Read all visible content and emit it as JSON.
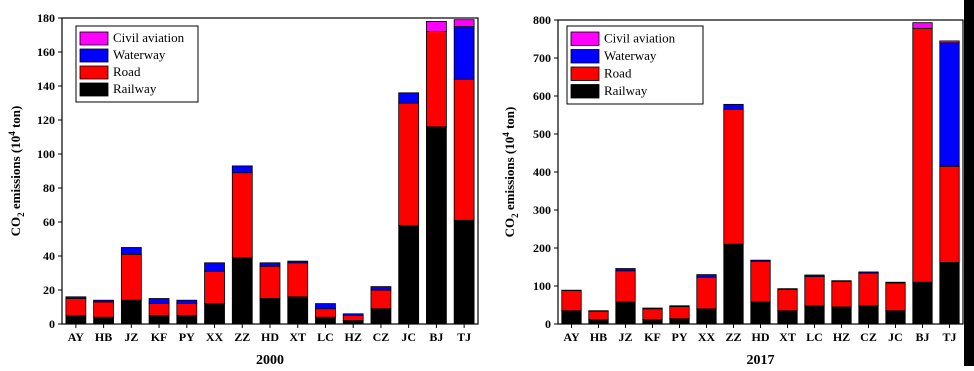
{
  "chart_data": [
    {
      "type": "bar",
      "stacked": true,
      "categories": [
        "AY",
        "HB",
        "JZ",
        "KF",
        "PY",
        "XX",
        "ZZ",
        "HD",
        "XT",
        "LC",
        "HZ",
        "CZ",
        "JC",
        "BJ",
        "TJ"
      ],
      "series": [
        {
          "name": "Railway",
          "values": [
            5,
            4,
            14,
            5,
            5,
            12,
            39,
            15,
            16,
            4,
            2,
            9,
            58,
            116,
            61
          ]
        },
        {
          "name": "Road",
          "values": [
            10,
            9,
            27,
            7,
            7,
            19,
            50,
            19,
            20,
            5,
            3,
            11,
            72,
            56,
            83
          ]
        },
        {
          "name": "Waterway",
          "values": [
            1,
            1,
            4,
            3,
            2,
            5,
            4,
            2,
            1,
            3,
            1,
            2,
            6,
            0,
            31
          ]
        },
        {
          "name": "Civil aviation",
          "values": [
            0,
            0,
            0,
            0,
            0,
            0,
            0,
            0,
            0,
            0,
            0,
            0,
            0,
            6,
            4
          ]
        }
      ],
      "title": "2000",
      "ylabel_parts": [
        "CO",
        "2",
        " emissions (10",
        "4",
        " ton)"
      ],
      "ylim": [
        0,
        180
      ],
      "yticks": [
        0,
        20,
        40,
        60,
        80,
        100,
        120,
        140,
        160,
        180
      ],
      "legend": "top-left",
      "colors": {
        "Railway": "#000000",
        "Road": "#ff0000",
        "Waterway": "#0000ff",
        "Civil aviation": "#ff00ff"
      }
    },
    {
      "type": "bar",
      "stacked": true,
      "categories": [
        "AY",
        "HB",
        "JZ",
        "KF",
        "PY",
        "XX",
        "ZZ",
        "HD",
        "XT",
        "LC",
        "HZ",
        "CZ",
        "JC",
        "BJ",
        "TJ"
      ],
      "series": [
        {
          "name": "Railway",
          "values": [
            35,
            12,
            58,
            12,
            14,
            40,
            210,
            58,
            35,
            48,
            45,
            48,
            35,
            110,
            162
          ]
        },
        {
          "name": "Road",
          "values": [
            53,
            22,
            82,
            28,
            32,
            83,
            355,
            107,
            56,
            77,
            67,
            86,
            73,
            668,
            253
          ]
        },
        {
          "name": "Waterway",
          "values": [
            1,
            1,
            6,
            2,
            2,
            7,
            13,
            3,
            2,
            4,
            2,
            3,
            2,
            0,
            325
          ]
        },
        {
          "name": "Civil aviation",
          "values": [
            0,
            0,
            0,
            0,
            0,
            0,
            0,
            0,
            0,
            0,
            0,
            0,
            0,
            15,
            5
          ]
        }
      ],
      "title": "2017",
      "ylabel_parts": [
        "CO",
        "2",
        " emissions (10",
        "4",
        " ton)"
      ],
      "ylim": [
        0,
        800
      ],
      "yticks": [
        0,
        100,
        200,
        300,
        400,
        500,
        600,
        700,
        800
      ],
      "legend": "top-left",
      "colors": {
        "Railway": "#000000",
        "Road": "#ff0000",
        "Waterway": "#0000ff",
        "Civil aviation": "#ff00ff"
      }
    }
  ]
}
